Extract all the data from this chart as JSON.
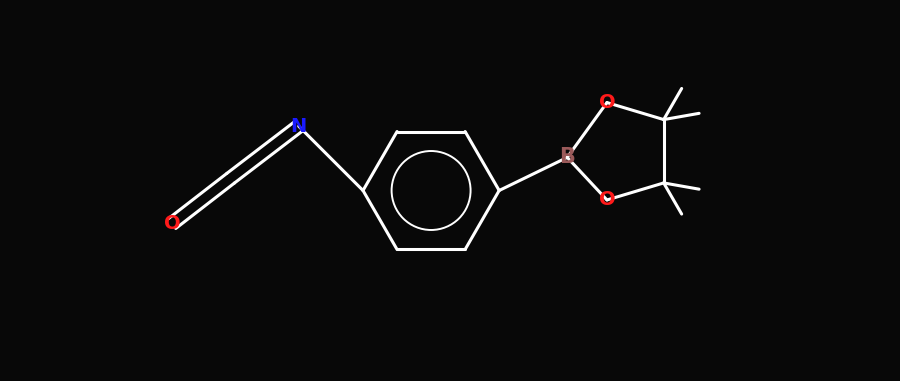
{
  "background_color": "#080808",
  "bond_color": "#ffffff",
  "bond_width": 2.2,
  "N_color": "#1a1aff",
  "O_color": "#ff1a1a",
  "B_color": "#9b5a5a",
  "figsize": [
    9.0,
    3.81
  ],
  "dpi": 100,
  "xlim": [
    -3.5,
    4.5
  ],
  "ylim": [
    -2.0,
    2.0
  ]
}
